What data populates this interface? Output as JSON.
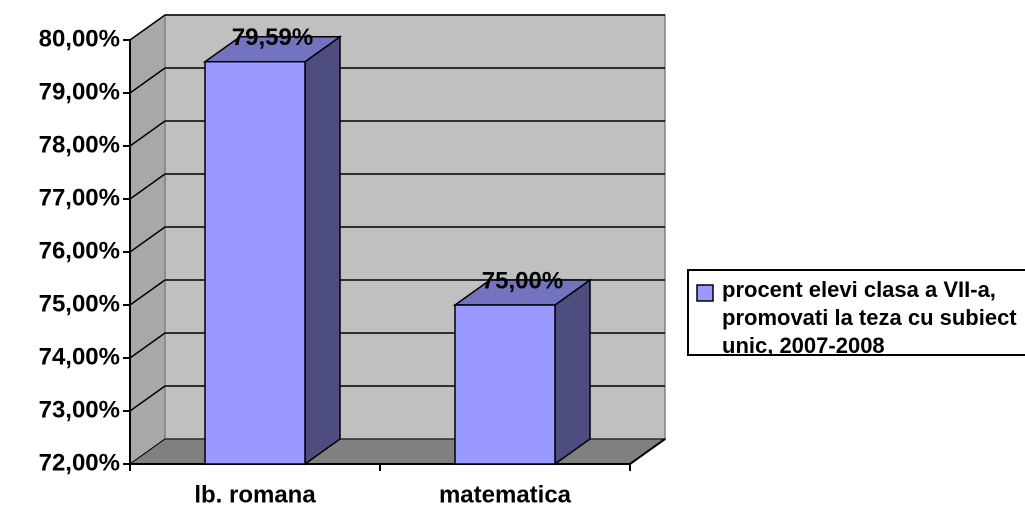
{
  "chart_data": {
    "type": "bar3d",
    "categories": [
      "lb. romana",
      "matematica"
    ],
    "series": [
      {
        "name": "procent elevi clasa a VII-a, promovati la teza cu subiect unic, 2007-2008",
        "color": "#9999ff",
        "values": [
          79.59,
          75.0
        ],
        "value_labels": [
          "79,59%",
          "75,00%"
        ]
      }
    ],
    "ylim": [
      72,
      80
    ],
    "yticks": [
      {
        "value": 72,
        "label": "72,00%"
      },
      {
        "value": 73,
        "label": "73,00%"
      },
      {
        "value": 74,
        "label": "74,00%"
      },
      {
        "value": 75,
        "label": "75,00%"
      },
      {
        "value": 76,
        "label": "76,00%"
      },
      {
        "value": 77,
        "label": "77,00%"
      },
      {
        "value": 78,
        "label": "78,00%"
      },
      {
        "value": 79,
        "label": "79,00%"
      },
      {
        "value": 80,
        "label": "80,00%"
      }
    ],
    "grid": true,
    "legend": "right"
  }
}
